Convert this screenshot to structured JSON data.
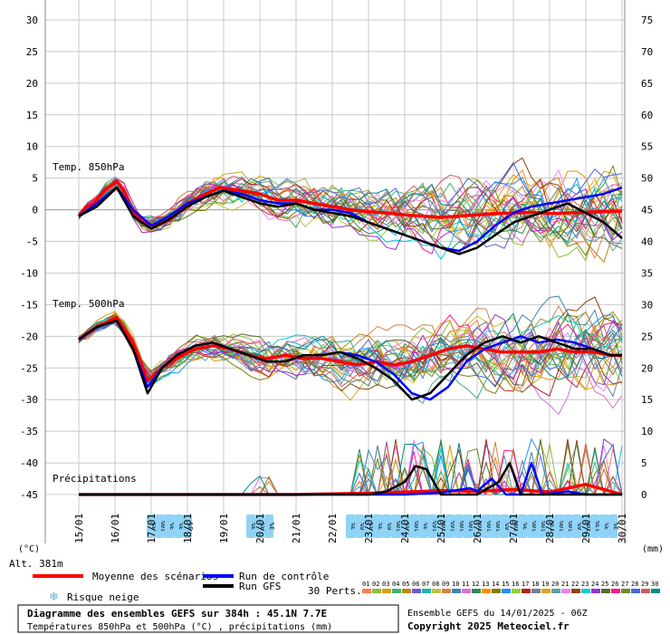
{
  "chart_data": {
    "type": "line",
    "x_ticks": [
      "15/01",
      "16/01",
      "17/01",
      "18/01",
      "19/01",
      "20/01",
      "21/01",
      "22/01",
      "23/01",
      "24/01",
      "25/01",
      "26/01",
      "27/01",
      "28/01",
      "29/01",
      "30/01"
    ],
    "y_left_ticks": [
      30,
      25,
      20,
      15,
      10,
      5,
      0,
      -5,
      -10,
      -15,
      -20,
      -25,
      -30,
      -35,
      -40,
      -45
    ],
    "y_right_ticks": [
      75,
      70,
      65,
      60,
      55,
      50,
      45,
      40,
      35,
      30,
      25,
      20,
      15,
      10,
      5,
      0
    ],
    "ylim_left": [
      -45,
      30
    ],
    "ylim_right": [
      0,
      75
    ],
    "left_unit": "(°C)",
    "right_unit": "(mm)",
    "altitude": "Alt. 381m",
    "labels": {
      "t850": "Temp. 850hPa",
      "t500": "Temp. 500hPa",
      "precip": "Précipitations"
    },
    "series": [
      {
        "name": "Moyenne des scénarios",
        "color": "#ff0000",
        "group": "t850",
        "values": [
          [
            0,
            -1
          ],
          [
            0.2,
            0.5
          ],
          [
            0.42,
            1
          ],
          [
            0.7,
            3
          ],
          [
            1.05,
            4.5
          ],
          [
            1.25,
            3
          ],
          [
            1.45,
            0
          ],
          [
            1.75,
            -2
          ],
          [
            2.05,
            -2.5
          ],
          [
            2.35,
            -2
          ],
          [
            2.65,
            -1
          ],
          [
            3,
            1
          ],
          [
            3.5,
            2.5
          ],
          [
            3.9,
            3.5
          ],
          [
            4.5,
            3
          ],
          [
            5,
            2.5
          ],
          [
            5.5,
            1.5
          ],
          [
            6,
            1.5
          ],
          [
            6.5,
            1
          ],
          [
            7,
            0.5
          ],
          [
            7.5,
            0
          ],
          [
            8,
            -0.3
          ],
          [
            8.5,
            -0.5
          ],
          [
            9,
            -0.8
          ],
          [
            9.5,
            -1
          ],
          [
            10,
            -1.2
          ],
          [
            10.5,
            -1
          ],
          [
            11,
            -0.8
          ],
          [
            11.5,
            -0.6
          ],
          [
            12,
            -0.5
          ],
          [
            12.5,
            -0.4
          ],
          [
            13,
            -0.6
          ],
          [
            13.5,
            -0.5
          ],
          [
            14,
            -0.4
          ],
          [
            14.5,
            -0.3
          ],
          [
            15,
            -0.2
          ]
        ]
      },
      {
        "name": "Run de contrôle",
        "color": "#0000ff",
        "group": "t850",
        "values": [
          [
            0,
            -1
          ],
          [
            0.5,
            1
          ],
          [
            1.05,
            3.5
          ],
          [
            1.5,
            0
          ],
          [
            2,
            -2.5
          ],
          [
            2.5,
            -1
          ],
          [
            3,
            1
          ],
          [
            3.5,
            2
          ],
          [
            4,
            3
          ],
          [
            4.5,
            2.5
          ],
          [
            5,
            1.5
          ],
          [
            5.5,
            1
          ],
          [
            6,
            1
          ],
          [
            6.5,
            0
          ],
          [
            7,
            0
          ],
          [
            7.5,
            -0.5
          ],
          [
            8,
            -2
          ],
          [
            8.5,
            -3
          ],
          [
            9,
            -4
          ],
          [
            9.5,
            -5
          ],
          [
            10,
            -6
          ],
          [
            10.5,
            -6.5
          ],
          [
            11,
            -5
          ],
          [
            11.5,
            -2.5
          ],
          [
            12,
            -0.5
          ],
          [
            12.5,
            0.5
          ],
          [
            13,
            1
          ],
          [
            13.5,
            1.5
          ],
          [
            14,
            2
          ],
          [
            14.5,
            2.5
          ],
          [
            15,
            3.5
          ]
        ]
      },
      {
        "name": "Run GFS",
        "color": "#000000",
        "group": "t850",
        "values": [
          [
            0,
            -1
          ],
          [
            0.5,
            0.5
          ],
          [
            1.05,
            3.5
          ],
          [
            1.5,
            -1
          ],
          [
            2,
            -3
          ],
          [
            2.5,
            -1.5
          ],
          [
            3,
            0.5
          ],
          [
            3.5,
            2
          ],
          [
            4,
            3
          ],
          [
            4.5,
            2
          ],
          [
            5,
            1
          ],
          [
            5.5,
            0.5
          ],
          [
            6,
            1
          ],
          [
            6.5,
            0
          ],
          [
            7,
            -0.5
          ],
          [
            7.5,
            -1
          ],
          [
            8,
            -2
          ],
          [
            8.5,
            -3
          ],
          [
            9,
            -4
          ],
          [
            9.5,
            -5
          ],
          [
            10,
            -6
          ],
          [
            10.5,
            -7
          ],
          [
            11,
            -6
          ],
          [
            11.5,
            -4
          ],
          [
            12,
            -2
          ],
          [
            12.5,
            -1
          ],
          [
            13,
            0
          ],
          [
            13.5,
            1
          ],
          [
            14,
            -0.5
          ],
          [
            14.5,
            -2
          ],
          [
            15,
            -4.5
          ]
        ]
      },
      {
        "name": "Moyenne des scénarios",
        "color": "#ff0000",
        "group": "t500",
        "values": [
          [
            0,
            -20.5
          ],
          [
            0.5,
            -18.5
          ],
          [
            1.05,
            -17
          ],
          [
            1.5,
            -21
          ],
          [
            1.9,
            -27
          ],
          [
            2.3,
            -25
          ],
          [
            2.7,
            -23.5
          ],
          [
            3.2,
            -22
          ],
          [
            3.7,
            -21.5
          ],
          [
            4.2,
            -22
          ],
          [
            4.7,
            -23
          ],
          [
            5.2,
            -23.5
          ],
          [
            5.7,
            -23
          ],
          [
            6.2,
            -23.5
          ],
          [
            6.7,
            -23.5
          ],
          [
            7.2,
            -24
          ],
          [
            7.7,
            -24.5
          ],
          [
            8.2,
            -24
          ],
          [
            8.7,
            -24.5
          ],
          [
            9.2,
            -24
          ],
          [
            9.7,
            -23
          ],
          [
            10.2,
            -22
          ],
          [
            10.7,
            -21.5
          ],
          [
            11.2,
            -22
          ],
          [
            11.7,
            -22.5
          ],
          [
            12.2,
            -22.5
          ],
          [
            12.7,
            -22.5
          ],
          [
            13.2,
            -22
          ],
          [
            13.7,
            -22.5
          ],
          [
            14.2,
            -22.5
          ],
          [
            14.7,
            -23
          ],
          [
            15,
            -23
          ]
        ]
      },
      {
        "name": "Run de contrôle",
        "color": "#0000ff",
        "group": "t500",
        "values": [
          [
            0,
            -20.5
          ],
          [
            0.5,
            -18.5
          ],
          [
            1.05,
            -17.5
          ],
          [
            1.5,
            -22
          ],
          [
            1.9,
            -28
          ],
          [
            2.3,
            -25
          ],
          [
            2.7,
            -23
          ],
          [
            3.2,
            -21.5
          ],
          [
            3.7,
            -21
          ],
          [
            4.2,
            -22
          ],
          [
            4.7,
            -23
          ],
          [
            5.2,
            -24
          ],
          [
            5.7,
            -24
          ],
          [
            6.2,
            -23
          ],
          [
            6.7,
            -23
          ],
          [
            7.2,
            -22.5
          ],
          [
            7.7,
            -23
          ],
          [
            8.2,
            -24
          ],
          [
            8.7,
            -26
          ],
          [
            9.2,
            -29
          ],
          [
            9.7,
            -30
          ],
          [
            10.2,
            -28
          ],
          [
            10.7,
            -24
          ],
          [
            11.2,
            -22
          ],
          [
            11.7,
            -21
          ],
          [
            12.2,
            -20
          ],
          [
            12.7,
            -21
          ],
          [
            13.2,
            -20.5
          ],
          [
            13.7,
            -21
          ],
          [
            14.2,
            -22
          ],
          [
            14.7,
            -23
          ],
          [
            15,
            -23
          ]
        ]
      },
      {
        "name": "Run GFS",
        "color": "#000000",
        "group": "t500",
        "values": [
          [
            0,
            -20.5
          ],
          [
            0.5,
            -18.5
          ],
          [
            1.05,
            -17.5
          ],
          [
            1.5,
            -22
          ],
          [
            1.9,
            -29
          ],
          [
            2.3,
            -25
          ],
          [
            2.7,
            -23
          ],
          [
            3.2,
            -21.5
          ],
          [
            3.7,
            -21
          ],
          [
            4.2,
            -22
          ],
          [
            4.7,
            -23
          ],
          [
            5.2,
            -24
          ],
          [
            5.7,
            -24
          ],
          [
            6.2,
            -23
          ],
          [
            6.7,
            -23
          ],
          [
            7.2,
            -22.5
          ],
          [
            7.7,
            -23.5
          ],
          [
            8.2,
            -25
          ],
          [
            8.7,
            -27
          ],
          [
            9.2,
            -30
          ],
          [
            9.7,
            -29
          ],
          [
            10.2,
            -26
          ],
          [
            10.7,
            -23
          ],
          [
            11.2,
            -21
          ],
          [
            11.7,
            -20
          ],
          [
            12.2,
            -21
          ],
          [
            12.7,
            -20
          ],
          [
            13.2,
            -21
          ],
          [
            13.7,
            -22
          ],
          [
            14.2,
            -22
          ],
          [
            14.7,
            -23
          ],
          [
            15,
            -23
          ]
        ]
      },
      {
        "name": "Moyenne des scénarios",
        "color": "#ff0000",
        "group": "precip",
        "values": [
          [
            0,
            0
          ],
          [
            2,
            0
          ],
          [
            3,
            0
          ],
          [
            5,
            0
          ],
          [
            6,
            0
          ],
          [
            8,
            0.2
          ],
          [
            9,
            0.4
          ],
          [
            10,
            0.6
          ],
          [
            11,
            0.5
          ],
          [
            12,
            0.8
          ],
          [
            13,
            0.4
          ],
          [
            14,
            1.6
          ],
          [
            14.5,
            0.8
          ],
          [
            15,
            0
          ]
        ]
      },
      {
        "name": "Run de contrôle",
        "color": "#0000ff",
        "group": "precip",
        "values": [
          [
            0,
            0
          ],
          [
            8,
            0
          ],
          [
            9,
            0
          ],
          [
            10,
            0.3
          ],
          [
            10.8,
            1
          ],
          [
            11,
            0.5
          ],
          [
            11.4,
            2.5
          ],
          [
            11.8,
            0
          ],
          [
            12.2,
            0
          ],
          [
            12.5,
            5
          ],
          [
            12.8,
            0
          ],
          [
            13.5,
            0.5
          ],
          [
            14,
            0
          ],
          [
            15,
            0
          ]
        ]
      },
      {
        "name": "Run GFS",
        "color": "#000000",
        "group": "precip",
        "values": [
          [
            0,
            0
          ],
          [
            8,
            0
          ],
          [
            8.5,
            0.5
          ],
          [
            9,
            2
          ],
          [
            9.3,
            4.5
          ],
          [
            9.6,
            4
          ],
          [
            10,
            0
          ],
          [
            11,
            0
          ],
          [
            11.6,
            2
          ],
          [
            11.9,
            5
          ],
          [
            12.2,
            0
          ],
          [
            13,
            0
          ],
          [
            14,
            0
          ],
          [
            15,
            0
          ]
        ]
      }
    ],
    "perturbations": {
      "label": "30 Perts.",
      "numbers": [
        "01",
        "02",
        "03",
        "04",
        "05",
        "06",
        "07",
        "08",
        "09",
        "10",
        "11",
        "12",
        "13",
        "14",
        "15",
        "16",
        "17",
        "18",
        "19",
        "20",
        "21",
        "22",
        "23",
        "24",
        "25",
        "26",
        "27",
        "28",
        "29",
        "30"
      ],
      "colors": [
        "#ff7f50",
        "#8fbc3f",
        "#d4a017",
        "#3cb371",
        "#b8860b",
        "#6a5acd",
        "#20b2aa",
        "#c0c040",
        "#cd853f",
        "#4682b4",
        "#da70d6",
        "#2e8b57",
        "#ff8c00",
        "#808000",
        "#1e90ff",
        "#9acd32",
        "#b22222",
        "#708090",
        "#daa520",
        "#5f9ea0",
        "#ee82ee",
        "#8b4513",
        "#00ced1",
        "#9932cc",
        "#556b2f",
        "#ff1493",
        "#6b8e23",
        "#4169e1",
        "#cd5c5c",
        "#008b8b"
      ]
    },
    "snow_risk": [
      {
        "label": "3%",
        "x": 2.0
      },
      {
        "label": "10%",
        "x": 2.25
      },
      {
        "label": "3%",
        "x": 2.5
      },
      {
        "label": "3%",
        "x": 2.75
      },
      {
        "label": "3%",
        "x": 3.0
      },
      {
        "label": "3%",
        "x": 4.75
      },
      {
        "label": "3%",
        "x": 5.0
      },
      {
        "label": "3%",
        "x": 5.25
      },
      {
        "label": "3%",
        "x": 7.5
      },
      {
        "label": "6%",
        "x": 7.75
      },
      {
        "label": "3%",
        "x": 8.0
      },
      {
        "label": "3%",
        "x": 8.25
      },
      {
        "label": "6%",
        "x": 8.5
      },
      {
        "label": "10%",
        "x": 8.75
      },
      {
        "label": "3%",
        "x": 9.0
      },
      {
        "label": "10%",
        "x": 9.25
      },
      {
        "label": "3%",
        "x": 9.5
      },
      {
        "label": "16%",
        "x": 9.75
      },
      {
        "label": "10%",
        "x": 10.0
      },
      {
        "label": "16%",
        "x": 10.25
      },
      {
        "label": "10%",
        "x": 10.5
      },
      {
        "label": "10%",
        "x": 10.75
      },
      {
        "label": "16%",
        "x": 11.0
      },
      {
        "label": "10%",
        "x": 11.25
      },
      {
        "label": "10%",
        "x": 11.5
      },
      {
        "label": "6%",
        "x": 11.75
      },
      {
        "label": "10%",
        "x": 12.0
      },
      {
        "label": "3%",
        "x": 12.25
      },
      {
        "label": "10%",
        "x": 12.5
      },
      {
        "label": "10%",
        "x": 12.75
      },
      {
        "label": "13%",
        "x": 13.0
      },
      {
        "label": "10%",
        "x": 13.25
      },
      {
        "label": "10%",
        "x": 13.5
      },
      {
        "label": "6%",
        "x": 13.75
      },
      {
        "label": "10%",
        "x": 14.0
      },
      {
        "label": "13%",
        "x": 14.25
      },
      {
        "label": "3%",
        "x": 14.5
      },
      {
        "label": "3%",
        "x": 14.75
      }
    ]
  },
  "legend": {
    "mean": "Moyenne des scénarios",
    "control": "Run de contrôle",
    "gfs": "Run GFS",
    "snow": "Risque neige"
  },
  "footer": {
    "title": "Diagramme des ensembles GEFS sur 384h : 45.1N 7.7E",
    "subtitle": "Températures 850hPa et 500hPa (°C) , précipitations (mm)",
    "run": "Ensemble GEFS du 14/01/2025 - 06Z",
    "copyright": "Copyright 2025 Meteociel.fr"
  }
}
